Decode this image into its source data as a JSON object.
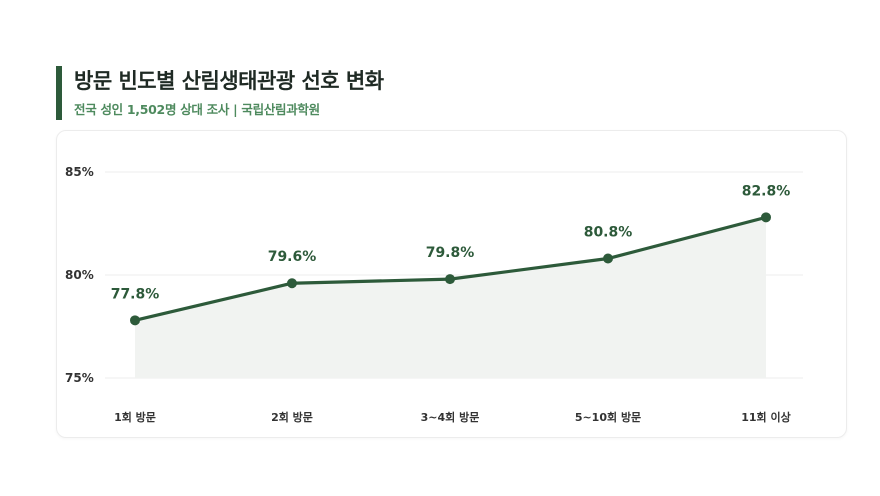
{
  "header": {
    "title": "방문 빈도별 산림생태관광 선호 변화",
    "subtitle": "전국 성인 1,502명 상대 조사 | 국립산림과학원"
  },
  "colors": {
    "accent": "#2d5a3a",
    "subtitle": "#4e8a5e",
    "area_fill": "#f1f3f1"
  },
  "chart_data": {
    "type": "area",
    "categories": [
      "1회 방문",
      "2회 방문",
      "3~4회 방문",
      "5~10회 방문",
      "11회 이상"
    ],
    "series": [
      {
        "values": [
          77.8,
          79.6,
          79.8,
          80.8,
          82.8
        ]
      }
    ],
    "data_labels": [
      "77.8%",
      "79.6%",
      "79.8%",
      "80.8%",
      "82.8%"
    ],
    "y_ticks": [
      75,
      80,
      85
    ],
    "y_tick_labels": [
      "75%",
      "80%",
      "85%"
    ],
    "ylim": [
      75,
      85
    ],
    "grid": true,
    "legend": "none"
  }
}
